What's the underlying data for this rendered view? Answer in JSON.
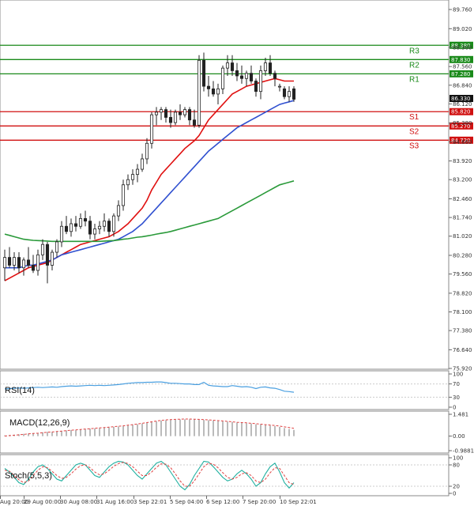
{
  "chart_data": {
    "type": "candlestick",
    "price_axis": {
      "ticks": [
        "89.760",
        "89.020",
        "88.300",
        "87.560",
        "86.840",
        "86.120",
        "85.380",
        "84.660",
        "83.920",
        "83.200",
        "82.460",
        "81.740",
        "81.020",
        "80.280",
        "79.560",
        "78.820",
        "78.100",
        "77.380",
        "76.640",
        "75.920"
      ],
      "ylim": [
        75.92,
        89.76
      ]
    },
    "current_price": "86.330",
    "dates": [
      "Aug 20:00",
      "29 Aug 00:00",
      "30 Aug 08:00",
      "31 Aug 16:00",
      "3 Sep 22:01",
      "5 Sep 04:00",
      "6 Sep 12:00",
      "7 Sep 20:00",
      "10 Sep 22:01"
    ],
    "levels": [
      {
        "name": "R3",
        "value": 88.38,
        "label": "88.380",
        "color": "#1a8a1a"
      },
      {
        "name": "R2",
        "value": 87.83,
        "label": "87.830",
        "color": "#1a8a1a"
      },
      {
        "name": "R1",
        "value": 87.28,
        "label": "87.280",
        "color": "#1a8a1a"
      },
      {
        "name": "S1",
        "value": 85.82,
        "label": "85.820",
        "color": "#d01010"
      },
      {
        "name": "S2",
        "value": 85.27,
        "label": "85.270",
        "color": "#d01010"
      },
      {
        "name": "S3",
        "value": 84.72,
        "label": "84.720",
        "color": "#d01010"
      }
    ],
    "candles": [
      {
        "o": 79.8,
        "h": 80.5,
        "l": 79.3,
        "c": 80.2
      },
      {
        "o": 80.2,
        "h": 80.6,
        "l": 79.8,
        "c": 79.9
      },
      {
        "o": 79.9,
        "h": 80.4,
        "l": 79.7,
        "c": 80.2
      },
      {
        "o": 80.2,
        "h": 80.4,
        "l": 79.6,
        "c": 79.8
      },
      {
        "o": 79.8,
        "h": 80.2,
        "l": 79.5,
        "c": 80.1
      },
      {
        "o": 80.1,
        "h": 80.6,
        "l": 79.8,
        "c": 79.9
      },
      {
        "o": 79.9,
        "h": 80.3,
        "l": 79.6,
        "c": 79.7
      },
      {
        "o": 79.7,
        "h": 80.5,
        "l": 79.5,
        "c": 80.3
      },
      {
        "o": 80.3,
        "h": 80.9,
        "l": 80.1,
        "c": 80.7
      },
      {
        "o": 80.7,
        "h": 80.8,
        "l": 79.2,
        "c": 79.9
      },
      {
        "o": 79.9,
        "h": 80.5,
        "l": 79.7,
        "c": 80.4
      },
      {
        "o": 80.4,
        "h": 80.9,
        "l": 80.2,
        "c": 80.8
      },
      {
        "o": 80.8,
        "h": 81.6,
        "l": 80.6,
        "c": 81.4
      },
      {
        "o": 81.4,
        "h": 81.8,
        "l": 81.1,
        "c": 81.2
      },
      {
        "o": 81.2,
        "h": 81.7,
        "l": 81.0,
        "c": 81.5
      },
      {
        "o": 81.5,
        "h": 81.8,
        "l": 81.2,
        "c": 81.4
      },
      {
        "o": 81.4,
        "h": 81.9,
        "l": 81.3,
        "c": 81.7
      },
      {
        "o": 81.7,
        "h": 82.0,
        "l": 81.4,
        "c": 81.6
      },
      {
        "o": 81.6,
        "h": 81.8,
        "l": 80.9,
        "c": 81.1
      },
      {
        "o": 81.1,
        "h": 81.5,
        "l": 80.9,
        "c": 81.3
      },
      {
        "o": 81.3,
        "h": 81.6,
        "l": 81.1,
        "c": 81.4
      },
      {
        "o": 81.4,
        "h": 81.9,
        "l": 81.2,
        "c": 81.6
      },
      {
        "o": 81.6,
        "h": 81.7,
        "l": 81.0,
        "c": 81.2
      },
      {
        "o": 81.2,
        "h": 81.9,
        "l": 81.0,
        "c": 81.8
      },
      {
        "o": 81.8,
        "h": 82.4,
        "l": 81.6,
        "c": 82.2
      },
      {
        "o": 82.2,
        "h": 83.2,
        "l": 82.0,
        "c": 83.0
      },
      {
        "o": 83.0,
        "h": 83.4,
        "l": 82.8,
        "c": 83.2
      },
      {
        "o": 83.2,
        "h": 83.6,
        "l": 83.0,
        "c": 83.4
      },
      {
        "o": 83.4,
        "h": 83.8,
        "l": 83.1,
        "c": 83.6
      },
      {
        "o": 83.6,
        "h": 84.2,
        "l": 83.5,
        "c": 84.0
      },
      {
        "o": 84.0,
        "h": 84.8,
        "l": 83.8,
        "c": 84.6
      },
      {
        "o": 84.6,
        "h": 85.8,
        "l": 84.4,
        "c": 85.7
      },
      {
        "o": 85.7,
        "h": 86.0,
        "l": 85.3,
        "c": 85.8
      },
      {
        "o": 85.8,
        "h": 86.0,
        "l": 85.5,
        "c": 85.9
      },
      {
        "o": 85.9,
        "h": 86.0,
        "l": 85.4,
        "c": 85.6
      },
      {
        "o": 85.6,
        "h": 85.9,
        "l": 85.2,
        "c": 85.4
      },
      {
        "o": 85.4,
        "h": 85.9,
        "l": 85.3,
        "c": 85.8
      },
      {
        "o": 85.8,
        "h": 86.1,
        "l": 85.5,
        "c": 85.7
      },
      {
        "o": 85.7,
        "h": 86.0,
        "l": 85.6,
        "c": 85.9
      },
      {
        "o": 85.9,
        "h": 86.0,
        "l": 85.3,
        "c": 85.5
      },
      {
        "o": 85.5,
        "h": 85.9,
        "l": 85.2,
        "c": 85.3
      },
      {
        "o": 85.3,
        "h": 88.0,
        "l": 85.2,
        "c": 87.8
      },
      {
        "o": 87.8,
        "h": 88.1,
        "l": 86.6,
        "c": 86.8
      },
      {
        "o": 86.8,
        "h": 87.2,
        "l": 86.4,
        "c": 86.7
      },
      {
        "o": 86.7,
        "h": 87.0,
        "l": 86.4,
        "c": 86.5
      },
      {
        "o": 86.5,
        "h": 86.9,
        "l": 86.1,
        "c": 86.7
      },
      {
        "o": 86.7,
        "h": 87.6,
        "l": 86.5,
        "c": 87.5
      },
      {
        "o": 87.5,
        "h": 88.0,
        "l": 87.2,
        "c": 87.7
      },
      {
        "o": 87.7,
        "h": 88.0,
        "l": 87.2,
        "c": 87.4
      },
      {
        "o": 87.4,
        "h": 87.7,
        "l": 87.0,
        "c": 87.2
      },
      {
        "o": 87.2,
        "h": 87.6,
        "l": 86.9,
        "c": 87.1
      },
      {
        "o": 87.1,
        "h": 87.4,
        "l": 86.8,
        "c": 87.3
      },
      {
        "o": 87.3,
        "h": 87.6,
        "l": 86.9,
        "c": 87.0
      },
      {
        "o": 87.0,
        "h": 87.1,
        "l": 86.4,
        "c": 86.6
      },
      {
        "o": 86.6,
        "h": 87.6,
        "l": 86.3,
        "c": 87.4
      },
      {
        "o": 87.4,
        "h": 87.9,
        "l": 87.2,
        "c": 87.7
      },
      {
        "o": 87.7,
        "h": 88.0,
        "l": 87.2,
        "c": 87.3
      },
      {
        "o": 87.3,
        "h": 87.4,
        "l": 86.8,
        "c": 87.1
      },
      {
        "o": 86.8,
        "h": 86.9,
        "l": 86.6,
        "c": 86.8
      },
      {
        "o": 86.7,
        "h": 86.8,
        "l": 86.3,
        "c": 86.4
      },
      {
        "o": 86.4,
        "h": 86.8,
        "l": 86.2,
        "c": 86.6
      },
      {
        "o": 86.7,
        "h": 86.8,
        "l": 86.2,
        "c": 86.3
      }
    ],
    "moving_averages": [
      {
        "color": "#e01010",
        "values": [
          79.3,
          79.4,
          79.5,
          79.6,
          79.7,
          79.8,
          79.85,
          79.9,
          79.95,
          80.0,
          80.1,
          80.2,
          80.3,
          80.4,
          80.5,
          80.6,
          80.7,
          80.75,
          80.8,
          80.85,
          80.9,
          80.95,
          81.0,
          81.1,
          81.2,
          81.35,
          81.5,
          81.7,
          81.9,
          82.1,
          82.4,
          82.8,
          83.1,
          83.4,
          83.6,
          83.8,
          84.0,
          84.2,
          84.4,
          84.55,
          84.7,
          84.9,
          85.2,
          85.5,
          85.7,
          85.9,
          86.1,
          86.3,
          86.5,
          86.6,
          86.7,
          86.8,
          86.85,
          86.9,
          86.95,
          87.0,
          87.05,
          87.1,
          87.05,
          87.0,
          87.0,
          87.0
        ]
      },
      {
        "color": "#3050d0",
        "values": [
          79.8,
          79.8,
          79.8,
          79.8,
          79.85,
          79.9,
          79.9,
          79.95,
          80.0,
          80.05,
          80.1,
          80.2,
          80.3,
          80.35,
          80.4,
          80.45,
          80.5,
          80.55,
          80.6,
          80.65,
          80.7,
          80.75,
          80.8,
          80.85,
          80.9,
          81.0,
          81.1,
          81.2,
          81.35,
          81.5,
          81.7,
          81.9,
          82.1,
          82.3,
          82.5,
          82.7,
          82.9,
          83.1,
          83.3,
          83.5,
          83.7,
          83.9,
          84.1,
          84.3,
          84.45,
          84.6,
          84.75,
          84.9,
          85.05,
          85.2,
          85.3,
          85.4,
          85.5,
          85.6,
          85.7,
          85.8,
          85.9,
          86.0,
          86.1,
          86.15,
          86.2,
          86.25
        ]
      },
      {
        "color": "#2a9a3a",
        "values": [
          81.1,
          81.05,
          81.0,
          80.95,
          80.9,
          80.88,
          80.86,
          80.85,
          80.84,
          80.83,
          80.82,
          80.82,
          80.82,
          80.82,
          80.82,
          80.82,
          80.82,
          80.82,
          80.82,
          80.82,
          80.82,
          80.83,
          80.84,
          80.85,
          80.87,
          80.9,
          80.92,
          80.95,
          80.98,
          81.0,
          81.03,
          81.06,
          81.1,
          81.13,
          81.16,
          81.2,
          81.25,
          81.3,
          81.35,
          81.4,
          81.45,
          81.5,
          81.55,
          81.6,
          81.65,
          81.7,
          81.8,
          81.9,
          82.0,
          82.1,
          82.2,
          82.3,
          82.4,
          82.5,
          82.6,
          82.7,
          82.8,
          82.9,
          83.0,
          83.05,
          83.1,
          83.15
        ]
      }
    ],
    "indicators": {
      "rsi": {
        "label": "RSI(14)",
        "ticks": [
          "100",
          "70",
          "30",
          "0"
        ],
        "ylim": [
          0,
          100
        ],
        "color": "#4a9fe0",
        "values": [
          55,
          56,
          57,
          58,
          57,
          58,
          59,
          60,
          59,
          60,
          61,
          60,
          62,
          63,
          64,
          63,
          64,
          65,
          66,
          65,
          66,
          65,
          66,
          67,
          68,
          70,
          72,
          73,
          74,
          74,
          75,
          75,
          76,
          76,
          74,
          72,
          72,
          71,
          70,
          70,
          68,
          68,
          75,
          66,
          64,
          63,
          62,
          62,
          65,
          63,
          61,
          62,
          60,
          56,
          60,
          61,
          58,
          57,
          53,
          48,
          47,
          45
        ]
      },
      "macd": {
        "label": "MACD(12,26,9)",
        "ticks": [
          "1.481",
          "0.00",
          "-0.9881"
        ],
        "ylim": [
          -0.9881,
          1.481
        ],
        "signal_color": "#e04040",
        "values": [
          0.05,
          0.08,
          0.1,
          0.12,
          0.15,
          0.18,
          0.2,
          0.22,
          0.25,
          0.28,
          0.3,
          0.32,
          0.35,
          0.38,
          0.4,
          0.42,
          0.45,
          0.48,
          0.5,
          0.52,
          0.55,
          0.58,
          0.6,
          0.62,
          0.65,
          0.68,
          0.72,
          0.76,
          0.8,
          0.85,
          0.9,
          0.95,
          1.0,
          1.05,
          1.08,
          1.1,
          1.12,
          1.13,
          1.14,
          1.14,
          1.13,
          1.12,
          1.1,
          1.08,
          1.05,
          1.02,
          1.0,
          0.98,
          0.95,
          0.92,
          0.9,
          0.88,
          0.85,
          0.8,
          0.78,
          0.75,
          0.72,
          0.68,
          0.62,
          0.55,
          0.48,
          0.42
        ],
        "signal": [
          0.0,
          0.03,
          0.06,
          0.09,
          0.12,
          0.15,
          0.18,
          0.2,
          0.23,
          0.26,
          0.28,
          0.31,
          0.34,
          0.37,
          0.4,
          0.42,
          0.45,
          0.48,
          0.5,
          0.53,
          0.56,
          0.58,
          0.61,
          0.64,
          0.67,
          0.7,
          0.74,
          0.78,
          0.82,
          0.87,
          0.92,
          0.97,
          1.02,
          1.07,
          1.1,
          1.12,
          1.14,
          1.15,
          1.16,
          1.16,
          1.15,
          1.14,
          1.12,
          1.1,
          1.08,
          1.05,
          1.03,
          1.0,
          0.97,
          0.94,
          0.92,
          0.9,
          0.87,
          0.84,
          0.81,
          0.78,
          0.75,
          0.72,
          0.68,
          0.63,
          0.58,
          0.53
        ]
      },
      "stoch": {
        "label": "Stoch(5,5,3)",
        "ticks": [
          "100",
          "80",
          "20",
          "0"
        ],
        "ylim": [
          0,
          100
        ],
        "k_color": "#20b0a0",
        "d_color": "#e04040",
        "k": [
          70,
          60,
          45,
          30,
          25,
          40,
          60,
          75,
          80,
          70,
          55,
          40,
          35,
          50,
          65,
          80,
          85,
          80,
          65,
          50,
          45,
          60,
          75,
          85,
          90,
          88,
          80,
          65,
          50,
          40,
          55,
          70,
          85,
          90,
          80,
          60,
          40,
          20,
          10,
          25,
          50,
          70,
          90,
          88,
          75,
          60,
          45,
          35,
          40,
          55,
          65,
          55,
          40,
          20,
          30,
          55,
          75,
          85,
          60,
          30,
          15,
          30
        ],
        "d": [
          65,
          62,
          50,
          38,
          30,
          35,
          50,
          65,
          75,
          72,
          62,
          50,
          42,
          45,
          55,
          68,
          78,
          80,
          72,
          60,
          52,
          55,
          65,
          76,
          84,
          87,
          84,
          75,
          62,
          50,
          50,
          60,
          73,
          83,
          82,
          72,
          55,
          35,
          20,
          20,
          35,
          55,
          75,
          85,
          82,
          72,
          58,
          45,
          40,
          45,
          55,
          58,
          50,
          35,
          30,
          40,
          58,
          72,
          70,
          50,
          30,
          25
        ]
      }
    }
  }
}
